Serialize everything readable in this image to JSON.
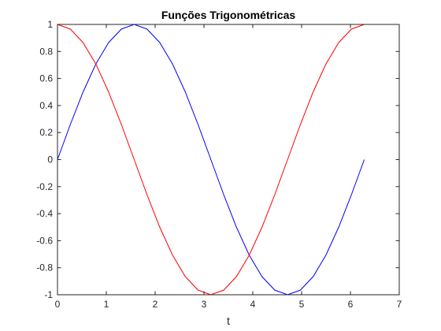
{
  "chart_data": {
    "type": "line",
    "title": "Funções Trigonométricas",
    "xlabel": "t",
    "ylabel": "",
    "xlim": [
      0,
      7
    ],
    "ylim": [
      -1,
      1
    ],
    "x_ticks": [
      0,
      1,
      2,
      3,
      4,
      5,
      6,
      7
    ],
    "y_ticks": [
      -1,
      -0.8,
      -0.6,
      -0.4,
      -0.2,
      0,
      0.2,
      0.4,
      0.6,
      0.8,
      1
    ],
    "x_tick_labels": [
      "0",
      "1",
      "2",
      "3",
      "4",
      "5",
      "6",
      "7"
    ],
    "y_tick_labels": [
      "-1",
      "-0.8",
      "-0.6",
      "-0.4",
      "-0.2",
      "0",
      "0.2",
      "0.4",
      "0.6",
      "0.8",
      "1"
    ],
    "grid": false,
    "x": [
      0,
      0.2618,
      0.5236,
      0.7854,
      1.0472,
      1.309,
      1.5708,
      1.8326,
      2.0944,
      2.3562,
      2.618,
      2.8798,
      3.1416,
      3.4034,
      3.6652,
      3.927,
      4.1888,
      4.4506,
      4.7124,
      4.9742,
      5.236,
      5.4978,
      5.7596,
      6.0214,
      6.2832
    ],
    "series": [
      {
        "color": "#0000ff",
        "values": [
          0,
          0.2588,
          0.5,
          0.7071,
          0.866,
          0.9659,
          1,
          0.9659,
          0.866,
          0.7071,
          0.5,
          0.2588,
          0,
          -0.2588,
          -0.5,
          -0.7071,
          -0.866,
          -0.9659,
          -1,
          -0.9659,
          -0.866,
          -0.7071,
          -0.5,
          -0.2588,
          0
        ]
      },
      {
        "color": "#ff0000",
        "values": [
          1,
          0.9659,
          0.866,
          0.7071,
          0.5,
          0.2588,
          0,
          -0.2588,
          -0.5,
          -0.7071,
          -0.866,
          -0.9659,
          -1,
          -0.9659,
          -0.866,
          -0.7071,
          -0.5,
          -0.2588,
          0,
          0.2588,
          0.5,
          0.7071,
          0.866,
          0.9659,
          1
        ]
      }
    ]
  }
}
